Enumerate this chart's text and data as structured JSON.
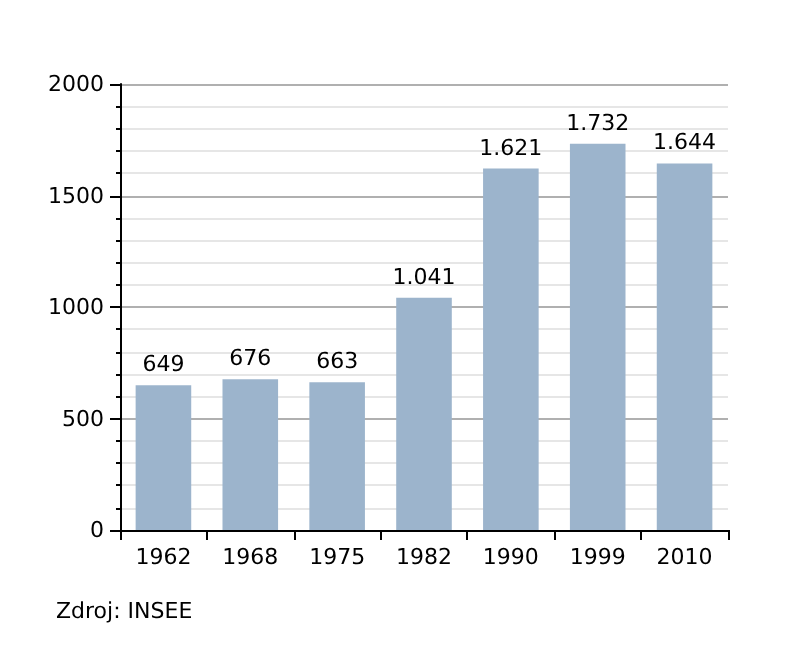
{
  "chart_data": {
    "type": "bar",
    "categories": [
      "1962",
      "1968",
      "1975",
      "1982",
      "1990",
      "1999",
      "2010"
    ],
    "values": [
      649,
      676,
      663,
      1041,
      1621,
      1732,
      1644
    ],
    "value_labels": [
      "649",
      "676",
      "663",
      "1.041",
      "1.621",
      "1.732",
      "1.644"
    ],
    "color": "#9cb4cc",
    "ylim": [
      0,
      2000
    ],
    "yticks": [
      0,
      500,
      1000,
      1500,
      2000
    ],
    "grid": "y",
    "annotations": [
      "Zdroj: INSEE"
    ]
  }
}
